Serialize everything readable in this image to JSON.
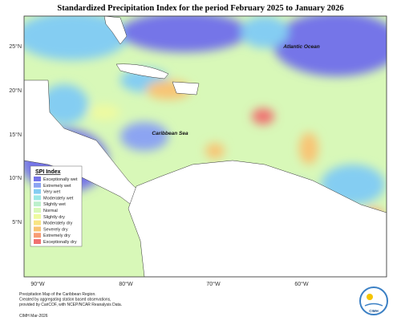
{
  "title": "Standardized Precipitation Index for the period February 2025 to January 2026",
  "map": {
    "latitude_labels": [
      "25°N",
      "20°N",
      "15°N",
      "10°N",
      "5°N"
    ],
    "longitude_labels": [
      "90°W",
      "80°W",
      "70°W",
      "60°W"
    ],
    "place_labels": [
      "Atlantic Ocean",
      "Caribbean Sea"
    ]
  },
  "legend": {
    "title": "SPI Index",
    "items": [
      {
        "label": "Exceptionally wet",
        "color": "#7474e8"
      },
      {
        "label": "Extremely wet",
        "color": "#8ca4f2"
      },
      {
        "label": "Very wet",
        "color": "#84cdf2"
      },
      {
        "label": "Moderately wet",
        "color": "#9ce8e4"
      },
      {
        "label": "Slightly wet",
        "color": "#bcf0cc"
      },
      {
        "label": "Normal",
        "color": "#d8f8b8"
      },
      {
        "label": "Slightly dry",
        "color": "#eefaa0"
      },
      {
        "label": "Moderately dry",
        "color": "#f8e484"
      },
      {
        "label": "Severely dry",
        "color": "#f8c474"
      },
      {
        "label": "Extremely dry",
        "color": "#f89c74"
      },
      {
        "label": "Exceptionally dry",
        "color": "#f07070"
      }
    ]
  },
  "footer": {
    "lines": [
      "Precipitation Map of the Caribbean Region.",
      "Created by aggregating station based observations,",
      "provided by CariCOF, with NCEP/NCAR Reanalysis Data."
    ],
    "credit": "CIMH Mar-2026"
  },
  "logo": "CIMH"
}
